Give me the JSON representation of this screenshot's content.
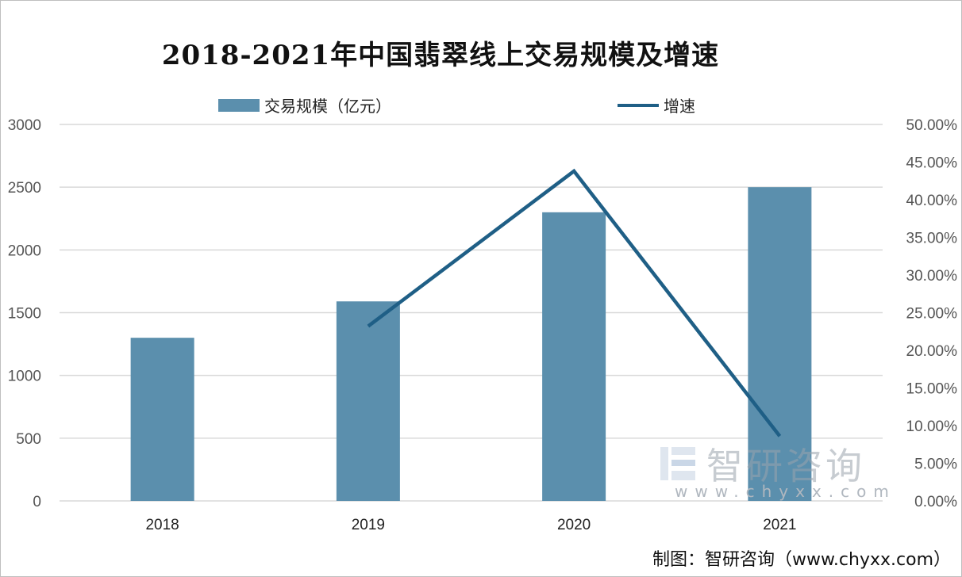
{
  "chart_data": {
    "type": "bar",
    "title": "2018-2021年中国翡翠线上交易规模及增速",
    "categories": [
      "2018",
      "2019",
      "2020",
      "2021"
    ],
    "series": [
      {
        "name": "交易规模（亿元）",
        "type": "bar",
        "axis": "left",
        "color": "#5b8fad",
        "values": [
          1300,
          1590,
          2300,
          2500
        ]
      },
      {
        "name": "增速",
        "type": "line",
        "axis": "right",
        "color": "#1f5f86",
        "values": [
          null,
          23.2,
          43.8,
          8.6
        ]
      }
    ],
    "y_left": {
      "range": [
        0,
        3000
      ],
      "ticks": [
        "0",
        "500",
        "1000",
        "1500",
        "2000",
        "2500",
        "3000"
      ]
    },
    "y_right": {
      "range": [
        0,
        50
      ],
      "unit": "%",
      "ticks": [
        "0.00%",
        "5.00%",
        "10.00%",
        "15.00%",
        "20.00%",
        "25.00%",
        "30.00%",
        "35.00%",
        "40.00%",
        "45.00%",
        "50.00%"
      ]
    },
    "grid": true,
    "legend": "top"
  },
  "source": "制图：智研咨询（www.chyxx.com）",
  "watermark": {
    "text": "智研咨询",
    "url": "www.chyxx.com"
  }
}
